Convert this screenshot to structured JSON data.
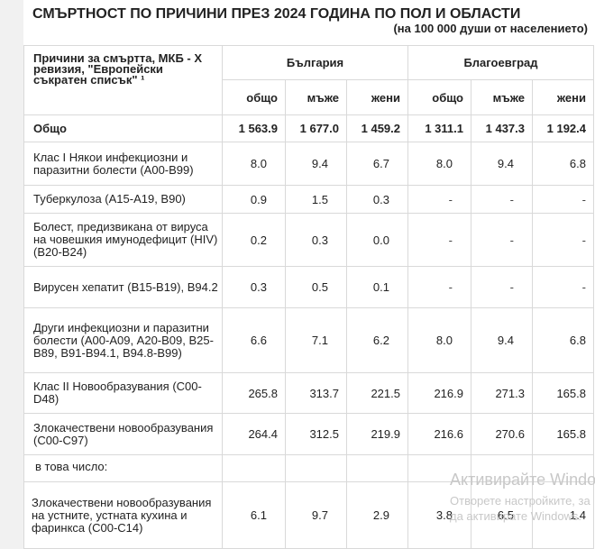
{
  "title": "СМЪРТНОСТ ПО ПРИЧИНИ ПРЕЗ 2024 ГОДИНА ПО ПОЛ И ОБЛАСТИ",
  "subtitle": "(на 100 000 души от населението)",
  "table": {
    "cause_header": "Причини за смъртта, МКБ - X ревизия, \"Европейски съкратен списък\" ¹",
    "groups": [
      "България",
      "Благоевград"
    ],
    "subheaders": [
      "общо",
      "мъже",
      "жени",
      "общо",
      "мъже",
      "жени"
    ],
    "rows": [
      {
        "cause": "Общо",
        "values": [
          "1 563.9",
          "1 677.0",
          "1 459.2",
          "1 311.1",
          "1 437.3",
          "1 192.4"
        ]
      },
      {
        "cause": "Клас I Някои инфекциозни и паразитни болести (А00-В99)",
        "values": [
          "8.0",
          "9.4",
          "6.7",
          "8.0",
          "9.4",
          "6.8"
        ]
      },
      {
        "cause": "Туберкулоза (А15-А19, В90)",
        "values": [
          "0.9",
          "1.5",
          "0.3",
          "-",
          "-",
          "-"
        ]
      },
      {
        "cause": "Болест, предизвикана от вируса на човешкия имунодефицит (HIV) (В20-В24)",
        "values": [
          "0.2",
          "0.3",
          "0.0",
          "-",
          "-",
          "-"
        ]
      },
      {
        "cause": "Вирусен хепатит (В15-В19), В94.2",
        "values": [
          "0.3",
          "0.5",
          "0.1",
          "-",
          "-",
          "-"
        ]
      },
      {
        "cause": "Други инфекциозни и паразитни болести (А00-А09, А20-В09, В25-В89, В91-В94.1, В94.8-В99)",
        "values": [
          "6.6",
          "7.1",
          "6.2",
          "8.0",
          "9.4",
          "6.8"
        ]
      },
      {
        "cause": "Клас II Новообразувания (C00-D48)",
        "values": [
          "265.8",
          "313.7",
          "221.5",
          "216.9",
          "271.3",
          "165.8"
        ]
      },
      {
        "cause": "Злокачествени новообразувания (С00-С97)",
        "values": [
          "264.4",
          "312.5",
          "219.9",
          "216.6",
          "270.6",
          "165.8"
        ]
      },
      {
        "cause": "в това число:",
        "values": [
          "",
          "",
          "",
          "",
          "",
          ""
        ]
      },
      {
        "cause": "Злокачествени новообразувания на устните, устната кухина и фаринкса (С00-С14)",
        "values": [
          "6.1",
          "9.7",
          "2.9",
          "3.8",
          "6.5",
          "1.4"
        ]
      }
    ]
  },
  "watermark": {
    "line1": "Активирайте Windows",
    "line2": "Отворете настройките, за да активирате Windows."
  }
}
